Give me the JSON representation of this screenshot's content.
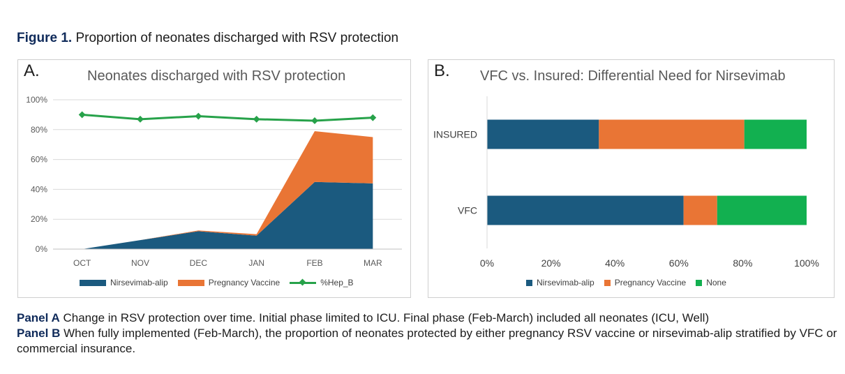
{
  "figure": {
    "label": "Figure 1.",
    "title": "Proportion of neonates discharged with RSV protection"
  },
  "captions": [
    {
      "label": "Panel A",
      "text": "Change in RSV protection over time. Initial phase limited to ICU. Final phase (Feb-March) included all neonates (ICU, Well)"
    },
    {
      "label": "Panel B",
      "text": "When fully implemented (Feb-March), the proportion of neonates protected by either pregnancy RSV vaccine or nirsevimab-alip stratified by VFC or commercial insurance."
    }
  ],
  "colors": {
    "nirsevimab": "#1b5a7f",
    "pregnancy": "#e97535",
    "hepb": "#27a24a",
    "none": "#12b050",
    "grid": "#d9d9d9",
    "axis_text": "#595959"
  },
  "chart_data": [
    {
      "panel_label": "A.",
      "type": "area",
      "stacked": true,
      "title": "Neonates discharged with RSV protection",
      "categories": [
        "OCT",
        "NOV",
        "DEC",
        "JAN",
        "FEB",
        "MAR"
      ],
      "ylim": [
        0,
        100
      ],
      "yticks": [
        0,
        20,
        40,
        60,
        80,
        100
      ],
      "ytick_labels": [
        "0%",
        "20%",
        "40%",
        "60%",
        "80%",
        "100%"
      ],
      "grid": true,
      "legend_position": "bottom",
      "series": [
        {
          "name": "Nirsevimab-alip",
          "kind": "area",
          "values": [
            0,
            6,
            12,
            9,
            45,
            44
          ]
        },
        {
          "name": "Pregnancy Vaccine",
          "kind": "area",
          "values": [
            0,
            0,
            0.5,
            1,
            34,
            31
          ]
        },
        {
          "name": "%Hep_B",
          "kind": "line",
          "values": [
            90,
            87,
            89,
            87,
            86,
            88
          ]
        }
      ]
    },
    {
      "panel_label": "B.",
      "type": "bar",
      "orientation": "horizontal",
      "stacked": true,
      "title": "VFC vs. Insured: Differential Need for Nirsevimab",
      "categories": [
        "INSURED",
        "VFC"
      ],
      "xlim": [
        0,
        100
      ],
      "xticks": [
        0,
        20,
        40,
        60,
        80,
        100
      ],
      "xtick_labels": [
        "0%",
        "20%",
        "40%",
        "60%",
        "80%",
        "100%"
      ],
      "legend_position": "bottom",
      "series": [
        {
          "name": "Nirsevimab-alip",
          "values": [
            35,
            61.5
          ]
        },
        {
          "name": "Pregnancy Vaccine",
          "values": [
            45.5,
            10.5
          ]
        },
        {
          "name": "None",
          "values": [
            19.5,
            28
          ]
        }
      ]
    }
  ]
}
